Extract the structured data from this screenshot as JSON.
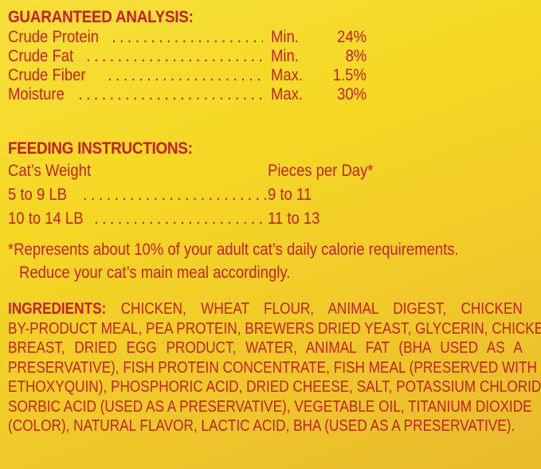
{
  "guaranteed_analysis": {
    "heading": "GUARANTEED ANALYSIS:",
    "rows": [
      {
        "nutrient": "Crude Protein",
        "qualifier": "Min.",
        "value": "24%"
      },
      {
        "nutrient": "Crude Fat",
        "qualifier": "Min.",
        "value": "8%"
      },
      {
        "nutrient": "Crude Fiber",
        "qualifier": "Max.",
        "value": "1.5%"
      },
      {
        "nutrient": "Moisture",
        "qualifier": "Max.",
        "value": "30%"
      }
    ]
  },
  "feeding": {
    "heading": "FEEDING INSTRUCTIONS:",
    "col_weight": "Cat’s Weight",
    "col_pieces": "Pieces per Day*",
    "rows": [
      {
        "weight": "5 to 9 LB",
        "pieces": "9 to 11"
      },
      {
        "weight": "10 to 14 LB",
        "pieces": "11 to 13"
      }
    ],
    "footnote_1": "*Represents about 10% of your adult cat’s daily calorie requirements.",
    "footnote_2": "Reduce your cat’s main meal accordingly."
  },
  "ingredients": {
    "heading": "INGREDIENTS:",
    "lines": [
      " CHICKEN, WHEAT FLOUR, ANIMAL DIGEST, CHICKEN",
      "BY-PRODUCT MEAL, PEA PROTEIN, BREWERS DRIED YEAST, GLYCERIN, CHICKEN",
      "BREAST, DRIED EGG PRODUCT, WATER, ANIMAL FAT (BHA USED AS A",
      "PRESERVATIVE), FISH PROTEIN CONCENTRATE, FISH MEAL (PRESERVED WITH",
      "ETHOXYQUIN), PHOSPHORIC ACID, DRIED CHEESE, SALT, POTASSIUM CHLORIDE,",
      "SORBIC ACID (USED AS A PRESERVATIVE), VEGETABLE OIL, TITANIUM DIOXIDE",
      "(COLOR), NATURAL FLAVOR, LACTIC ACID, BHA (USED AS A PRESERVATIVE)."
    ]
  },
  "colors": {
    "text": "#c41f2a",
    "background": "#f5d824"
  }
}
